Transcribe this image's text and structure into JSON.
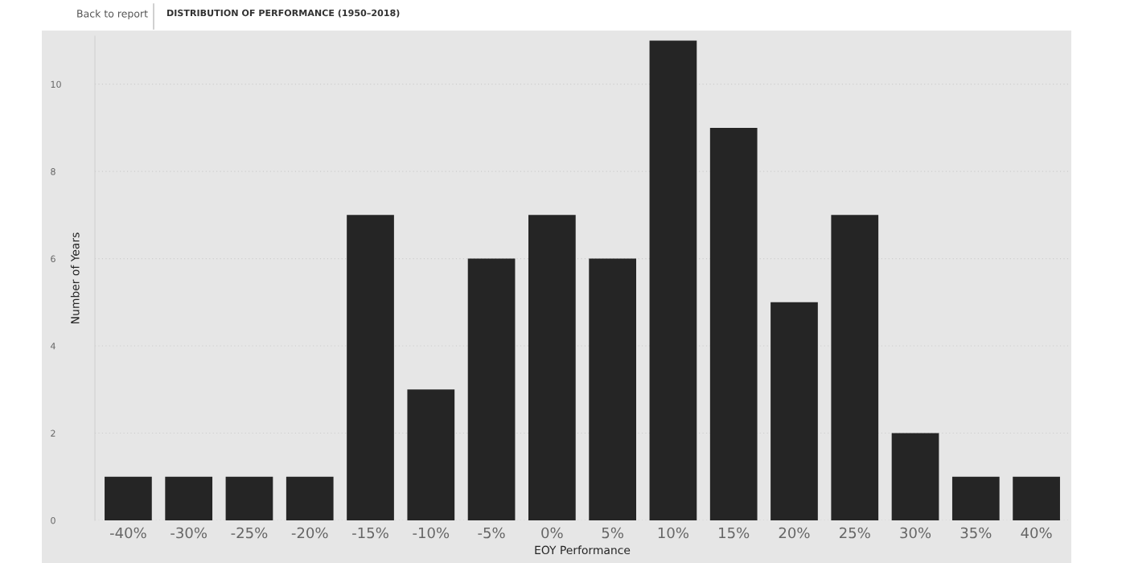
{
  "chart_data": {
    "type": "bar",
    "title": "DISTRIBUTION OF PERFORMANCE (1950–2018)",
    "xlabel": "EOY Performance",
    "ylabel": "Number of Years",
    "annotations": [
      "Back to report"
    ],
    "categories": [
      "-40%",
      "-30%",
      "-25%",
      "-20%",
      "-15%",
      "-10%",
      "-5%",
      "0%",
      "5%",
      "10%",
      "15%",
      "20%",
      "25%",
      "30%",
      "35%",
      "40%"
    ],
    "values": [
      1,
      1,
      1,
      1,
      7,
      3,
      6,
      7,
      6,
      11,
      9,
      5,
      7,
      2,
      1,
      1
    ],
    "color": "#252525",
    "ylim": [
      0,
      11.1
    ],
    "yticks": [
      0,
      2,
      4,
      6,
      8,
      10
    ],
    "grid": "y",
    "legend": false
  }
}
